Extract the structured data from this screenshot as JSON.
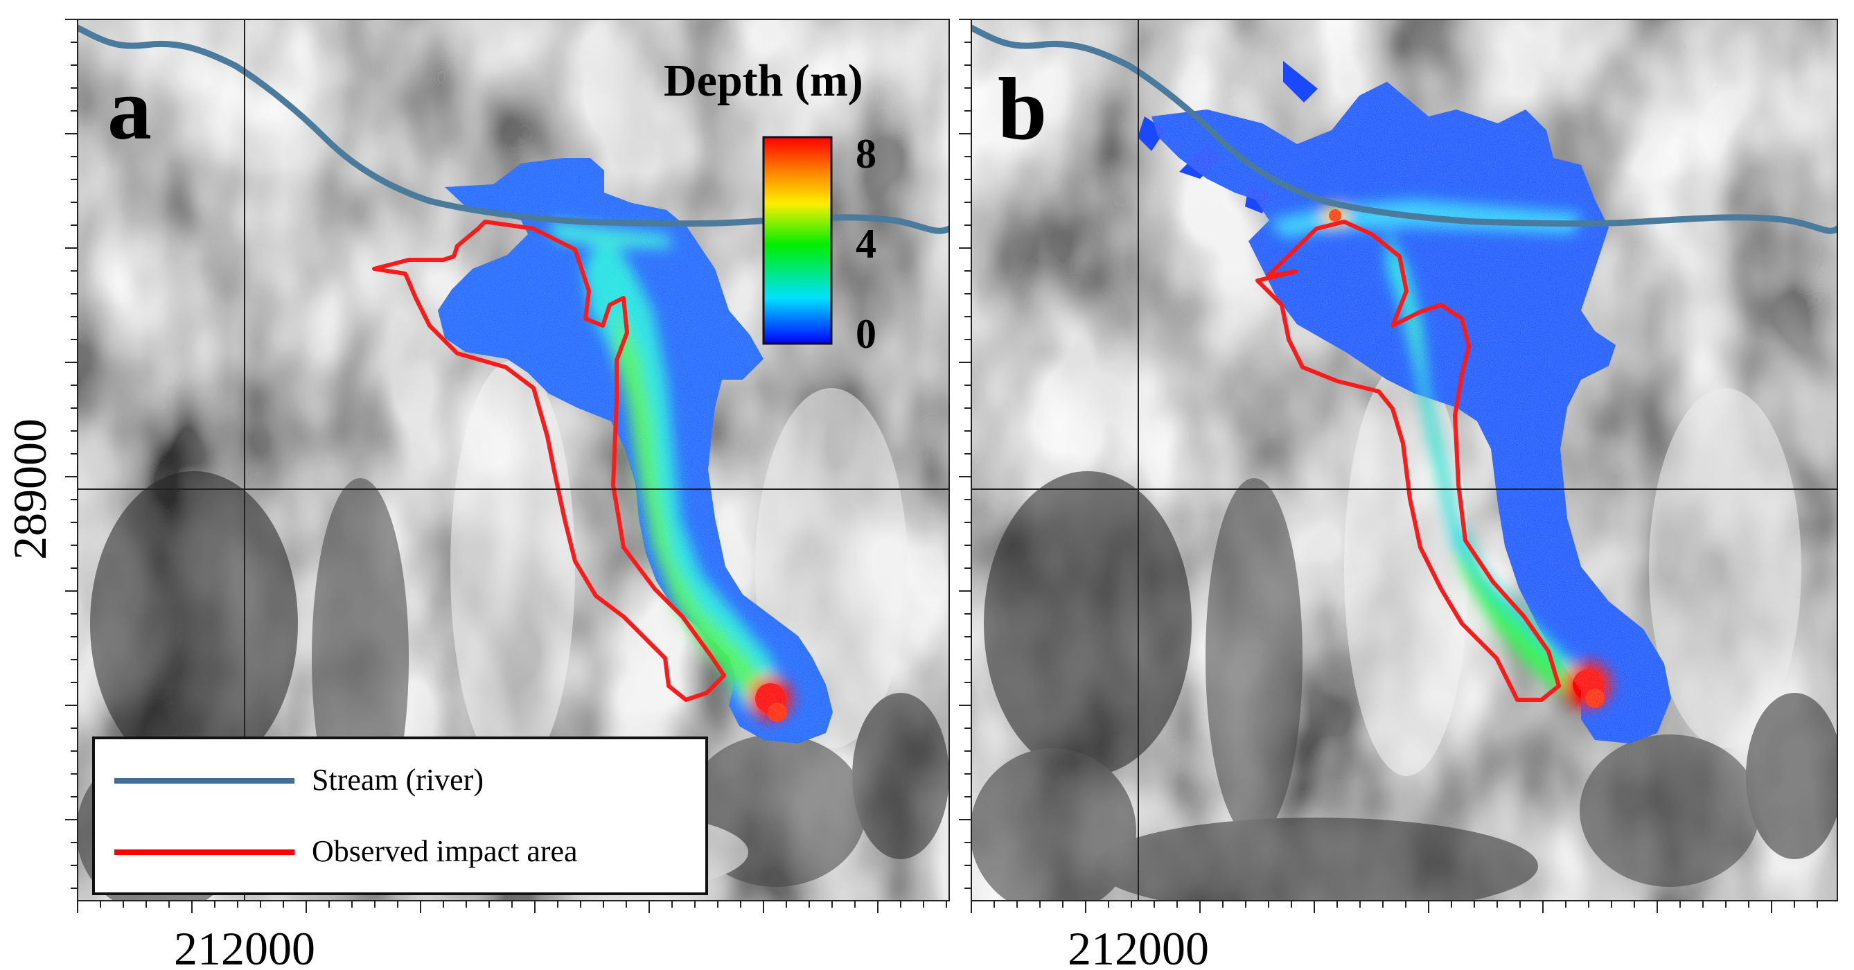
{
  "panels": [
    {
      "letter": "a",
      "x_tick_label": "212000",
      "y_tick_label": "289000"
    },
    {
      "letter": "b",
      "x_tick_label": "212000"
    }
  ],
  "colorbar": {
    "title": "Depth (m)",
    "ticks": [
      "8",
      "4",
      "0"
    ],
    "colors": [
      "#ff0000",
      "#ff8c00",
      "#ffee00",
      "#00ee00",
      "#00e0ff",
      "#0000ff"
    ]
  },
  "legend": {
    "items": [
      {
        "label": "Stream (river)",
        "color": "#3f6e99"
      },
      {
        "label": "Observed impact area",
        "color": "#ff0000"
      }
    ]
  },
  "colors": {
    "stream": "#4a7a9c",
    "observed": "#ff1a1a",
    "deposit_peak": "#ff0000"
  }
}
